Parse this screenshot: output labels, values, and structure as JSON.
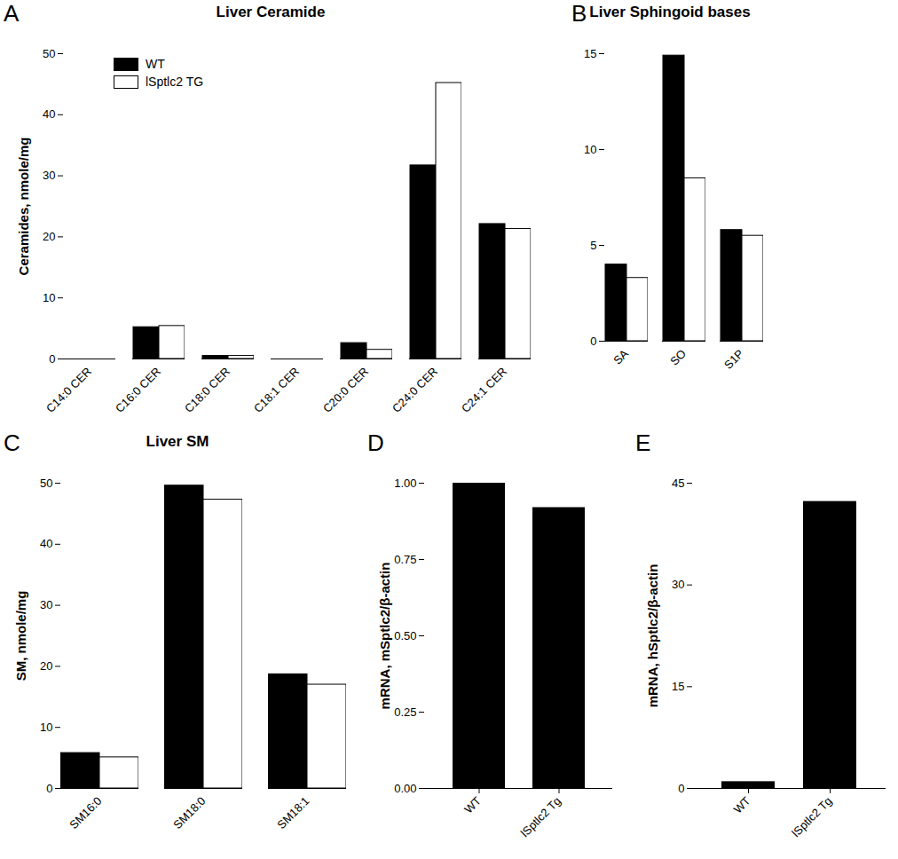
{
  "chart_data": [
    {
      "panel": "A",
      "type": "bar",
      "title": "Liver Ceramide",
      "categories": [
        "C14:0 CER",
        "C16:0 CER",
        "C18:0 CER",
        "C18:1 CER",
        "C20:0 CER",
        "C24:0 CER",
        "C24:1 CER"
      ],
      "series": [
        {
          "name": "WT",
          "color": "#000000",
          "values": [
            0,
            5.2,
            0.5,
            0,
            2.6,
            31.7,
            22.1
          ]
        },
        {
          "name": "lSptlc2 TG",
          "color": "#ffffff",
          "values": [
            0,
            5.4,
            0.5,
            0,
            1.5,
            45.2,
            21.3
          ]
        }
      ],
      "ylabel": "Ceramides, nmole/mg",
      "ylim": [
        0,
        50
      ],
      "yticks": [
        0,
        10,
        20,
        30,
        40,
        50
      ],
      "legend": "upper left"
    },
    {
      "panel": "B",
      "type": "bar",
      "title": "Liver Sphingoid bases",
      "categories": [
        "SA",
        "SO",
        "S1P"
      ],
      "series": [
        {
          "name": "WT",
          "color": "#000000",
          "values": [
            4.0,
            14.9,
            5.8
          ]
        },
        {
          "name": "lSptlc2 TG",
          "color": "#ffffff",
          "values": [
            3.3,
            8.5,
            5.5
          ]
        }
      ],
      "ylim": [
        0,
        15
      ],
      "yticks": [
        0,
        5,
        10,
        15
      ]
    },
    {
      "panel": "C",
      "type": "bar",
      "title": "Liver SM",
      "categories": [
        "SM16:0",
        "SM18:0",
        "SM18:1"
      ],
      "series": [
        {
          "name": "WT",
          "color": "#000000",
          "values": [
            5.8,
            49.6,
            18.7
          ]
        },
        {
          "name": "lSptlc2 TG",
          "color": "#ffffff",
          "values": [
            5.1,
            47.3,
            17.0
          ]
        }
      ],
      "ylabel": "SM, nmole/mg",
      "ylim": [
        0,
        50
      ],
      "yticks": [
        0,
        10,
        20,
        30,
        40,
        50
      ]
    },
    {
      "panel": "D",
      "type": "bar",
      "categories": [
        "WT",
        "lSptlc2 Tg"
      ],
      "values": [
        1.0,
        0.92
      ],
      "color": "#000000",
      "ylabel": "mRNA, mSptlc2/β-actin",
      "ylim": [
        0,
        1
      ],
      "yticks": [
        {
          "value": 0,
          "label": "0.00"
        },
        {
          "value": 0.25,
          "label": "0.25"
        },
        {
          "value": 0.5,
          "label": "0.50"
        },
        {
          "value": 0.75,
          "label": "0.75"
        },
        {
          "value": 1,
          "label": "1.00"
        }
      ]
    },
    {
      "panel": "E",
      "type": "bar",
      "categories": [
        "WT",
        "lSptlc2 Tg"
      ],
      "values": [
        1.0,
        42.3
      ],
      "color": "#000000",
      "ylabel": "mRNA, hSptlc2/β-actin",
      "ylim": [
        0,
        45
      ],
      "yticks": [
        0,
        15,
        30,
        45
      ]
    }
  ]
}
